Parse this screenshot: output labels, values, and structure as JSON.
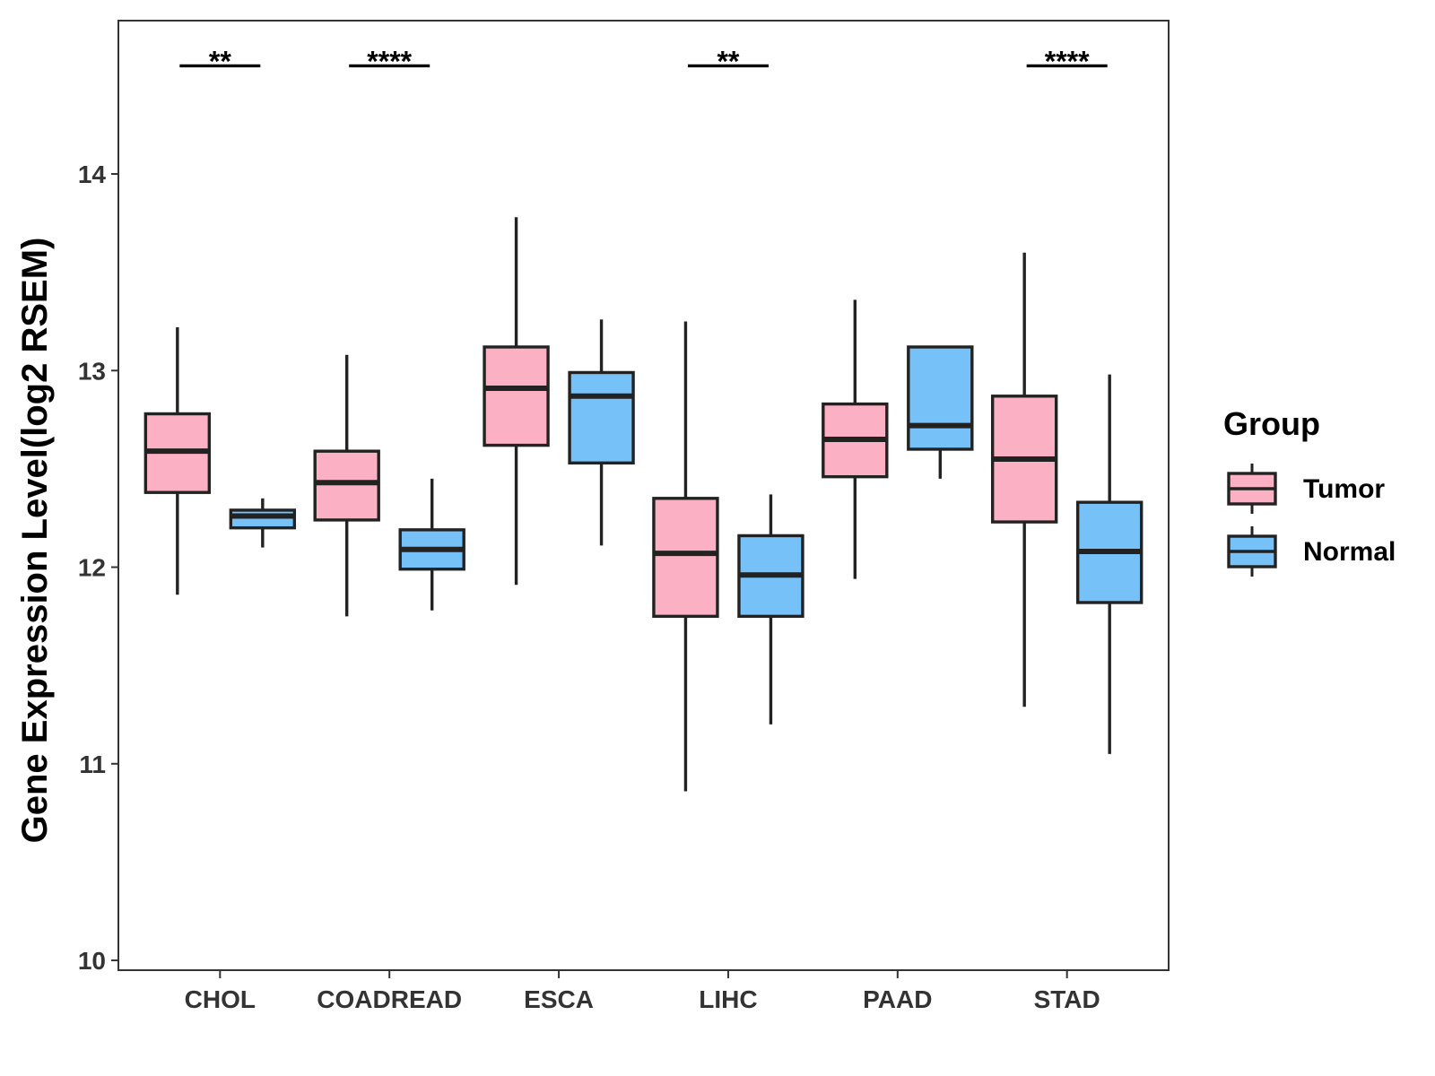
{
  "chart_data": {
    "type": "boxplot",
    "title": "",
    "xlabel": "",
    "ylabel": "Gene Expression Level(log2 RSEM)",
    "ylim": [
      9.95,
      14.78
    ],
    "yticks": [
      10,
      11,
      12,
      13,
      14
    ],
    "categories": [
      "CHOL",
      "COADREAD",
      "ESCA",
      "LIHC",
      "PAAD",
      "STAD"
    ],
    "series": [
      {
        "name": "Tumor",
        "color": "#FBB1C3",
        "boxes": [
          {
            "category": "CHOL",
            "min": 11.86,
            "q1": 12.38,
            "median": 12.59,
            "q3": 12.78,
            "max": 13.22
          },
          {
            "category": "COADREAD",
            "min": 11.75,
            "q1": 12.24,
            "median": 12.43,
            "q3": 12.59,
            "max": 13.08
          },
          {
            "category": "ESCA",
            "min": 11.91,
            "q1": 12.62,
            "median": 12.91,
            "q3": 13.12,
            "max": 13.78
          },
          {
            "category": "LIHC",
            "min": 10.86,
            "q1": 11.75,
            "median": 12.07,
            "q3": 12.35,
            "max": 13.25
          },
          {
            "category": "PAAD",
            "min": 11.94,
            "q1": 12.46,
            "median": 12.65,
            "q3": 12.83,
            "max": 13.36
          },
          {
            "category": "STAD",
            "min": 11.29,
            "q1": 12.23,
            "median": 12.55,
            "q3": 12.87,
            "max": 13.6
          }
        ]
      },
      {
        "name": "Normal",
        "color": "#76C1F7",
        "boxes": [
          {
            "category": "CHOL",
            "min": 12.1,
            "q1": 12.2,
            "median": 12.26,
            "q3": 12.29,
            "max": 12.35
          },
          {
            "category": "COADREAD",
            "min": 11.78,
            "q1": 11.99,
            "median": 12.09,
            "q3": 12.19,
            "max": 12.45
          },
          {
            "category": "ESCA",
            "min": 12.11,
            "q1": 12.53,
            "median": 12.87,
            "q3": 12.99,
            "max": 13.26
          },
          {
            "category": "LIHC",
            "min": 11.2,
            "q1": 11.75,
            "median": 11.96,
            "q3": 12.16,
            "max": 12.37
          },
          {
            "category": "PAAD",
            "min": 12.45,
            "q1": 12.6,
            "median": 12.72,
            "q3": 13.12,
            "max": 13.12
          },
          {
            "category": "STAD",
            "min": 11.05,
            "q1": 11.82,
            "median": 12.08,
            "q3": 12.33,
            "max": 12.98
          }
        ]
      }
    ],
    "significance": [
      {
        "category": "CHOL",
        "label": "**"
      },
      {
        "category": "COADREAD",
        "label": "****"
      },
      {
        "category": "ESCA",
        "label": ""
      },
      {
        "category": "LIHC",
        "label": "**"
      },
      {
        "category": "PAAD",
        "label": ""
      },
      {
        "category": "STAD",
        "label": "****"
      }
    ],
    "significance_level": 14.55,
    "legend": {
      "title": "Group",
      "entries": [
        "Tumor",
        "Normal"
      ],
      "position": "right"
    },
    "grid": false
  }
}
